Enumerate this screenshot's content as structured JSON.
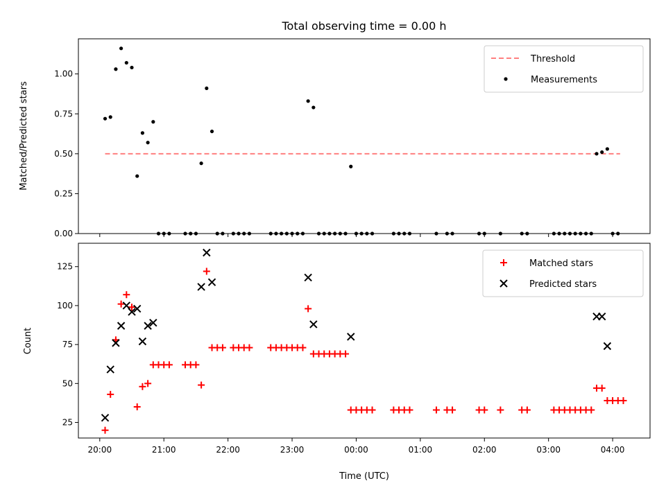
{
  "chart_data": [
    {
      "type": "scatter",
      "title": "Total observing time = 0.00 h",
      "ylabel": "Matched/Predicted stars",
      "xlabel": "",
      "ylim": [
        0,
        1.22
      ],
      "yticks": [
        0.0,
        0.25,
        0.5,
        0.75,
        1.0
      ],
      "ytick_labels": [
        "0.00",
        "0.25",
        "0.50",
        "0.75",
        "1.00"
      ],
      "legend_position": "top-right",
      "threshold": {
        "name": "Threshold",
        "value": 0.5,
        "x_range": [
          "20:05",
          "04:07"
        ],
        "color": "#ff7f7f"
      },
      "series": [
        {
          "name": "Measurements",
          "color": "#000000",
          "marker": "dot",
          "points": [
            [
              "20:05",
              0.72
            ],
            [
              "20:10",
              0.73
            ],
            [
              "20:15",
              1.03
            ],
            [
              "20:20",
              1.16
            ],
            [
              "20:25",
              1.07
            ],
            [
              "20:30",
              1.04
            ],
            [
              "20:35",
              0.36
            ],
            [
              "20:40",
              0.63
            ],
            [
              "20:45",
              0.57
            ],
            [
              "20:50",
              0.7
            ],
            [
              "20:55",
              0.0
            ],
            [
              "21:00",
              0.0
            ],
            [
              "21:05",
              0.0
            ],
            [
              "21:20",
              0.0
            ],
            [
              "21:25",
              0.0
            ],
            [
              "21:30",
              0.0
            ],
            [
              "21:35",
              0.44
            ],
            [
              "21:40",
              0.91
            ],
            [
              "21:45",
              0.64
            ],
            [
              "21:50",
              0.0
            ],
            [
              "21:55",
              0.0
            ],
            [
              "22:05",
              0.0
            ],
            [
              "22:10",
              0.0
            ],
            [
              "22:15",
              0.0
            ],
            [
              "22:20",
              0.0
            ],
            [
              "22:40",
              0.0
            ],
            [
              "22:45",
              0.0
            ],
            [
              "22:50",
              0.0
            ],
            [
              "22:55",
              0.0
            ],
            [
              "23:00",
              0.0
            ],
            [
              "23:05",
              0.0
            ],
            [
              "23:10",
              0.0
            ],
            [
              "23:15",
              0.83
            ],
            [
              "23:20",
              0.79
            ],
            [
              "23:25",
              0.0
            ],
            [
              "23:30",
              0.0
            ],
            [
              "23:35",
              0.0
            ],
            [
              "23:40",
              0.0
            ],
            [
              "23:45",
              0.0
            ],
            [
              "23:50",
              0.0
            ],
            [
              "23:55",
              0.42
            ],
            [
              "00:00",
              0.0
            ],
            [
              "00:05",
              0.0
            ],
            [
              "00:10",
              0.0
            ],
            [
              "00:15",
              0.0
            ],
            [
              "00:35",
              0.0
            ],
            [
              "00:40",
              0.0
            ],
            [
              "00:45",
              0.0
            ],
            [
              "00:50",
              0.0
            ],
            [
              "01:15",
              0.0
            ],
            [
              "01:25",
              0.0
            ],
            [
              "01:30",
              0.0
            ],
            [
              "01:55",
              0.0
            ],
            [
              "02:00",
              0.0
            ],
            [
              "02:15",
              0.0
            ],
            [
              "02:35",
              0.0
            ],
            [
              "02:40",
              0.0
            ],
            [
              "03:05",
              0.0
            ],
            [
              "03:10",
              0.0
            ],
            [
              "03:15",
              0.0
            ],
            [
              "03:20",
              0.0
            ],
            [
              "03:25",
              0.0
            ],
            [
              "03:30",
              0.0
            ],
            [
              "03:35",
              0.0
            ],
            [
              "03:40",
              0.0
            ],
            [
              "03:45",
              0.5
            ],
            [
              "03:50",
              0.51
            ],
            [
              "03:55",
              0.53
            ],
            [
              "04:00",
              0.0
            ],
            [
              "04:05",
              0.0
            ]
          ]
        }
      ]
    },
    {
      "type": "scatter",
      "title": "",
      "xlabel": "Time (UTC)",
      "ylabel": "Count",
      "ylim": [
        15,
        140
      ],
      "yticks": [
        25,
        50,
        75,
        100,
        125
      ],
      "ytick_labels": [
        "25",
        "50",
        "75",
        "100",
        "125"
      ],
      "x_range": [
        "19:40",
        "04:35"
      ],
      "xticks": [
        "20:00",
        "21:00",
        "22:00",
        "23:00",
        "00:00",
        "01:00",
        "02:00",
        "03:00",
        "04:00"
      ],
      "xtick_labels": [
        "20:00",
        "21:00",
        "22:00",
        "23:00",
        "00:00",
        "01:00",
        "02:00",
        "03:00",
        "04:00"
      ],
      "legend_position": "top-right",
      "series": [
        {
          "name": "Matched stars",
          "color": "#ff0000",
          "marker": "plus",
          "points": [
            [
              "20:05",
              20
            ],
            [
              "20:10",
              43
            ],
            [
              "20:15",
              78
            ],
            [
              "20:20",
              101
            ],
            [
              "20:25",
              107
            ],
            [
              "20:30",
              99
            ],
            [
              "20:35",
              35
            ],
            [
              "20:40",
              48
            ],
            [
              "20:45",
              50
            ],
            [
              "20:50",
              62
            ],
            [
              "20:55",
              62
            ],
            [
              "21:00",
              62
            ],
            [
              "21:05",
              62
            ],
            [
              "21:20",
              62
            ],
            [
              "21:25",
              62
            ],
            [
              "21:30",
              62
            ],
            [
              "21:35",
              49
            ],
            [
              "21:40",
              122
            ],
            [
              "21:45",
              73
            ],
            [
              "21:50",
              73
            ],
            [
              "21:55",
              73
            ],
            [
              "22:05",
              73
            ],
            [
              "22:10",
              73
            ],
            [
              "22:15",
              73
            ],
            [
              "22:20",
              73
            ],
            [
              "22:40",
              73
            ],
            [
              "22:45",
              73
            ],
            [
              "22:50",
              73
            ],
            [
              "22:55",
              73
            ],
            [
              "23:00",
              73
            ],
            [
              "23:05",
              73
            ],
            [
              "23:10",
              73
            ],
            [
              "23:15",
              98
            ],
            [
              "23:20",
              69
            ],
            [
              "23:25",
              69
            ],
            [
              "23:30",
              69
            ],
            [
              "23:35",
              69
            ],
            [
              "23:40",
              69
            ],
            [
              "23:45",
              69
            ],
            [
              "23:50",
              69
            ],
            [
              "23:55",
              33
            ],
            [
              "00:00",
              33
            ],
            [
              "00:05",
              33
            ],
            [
              "00:10",
              33
            ],
            [
              "00:15",
              33
            ],
            [
              "00:35",
              33
            ],
            [
              "00:40",
              33
            ],
            [
              "00:45",
              33
            ],
            [
              "00:50",
              33
            ],
            [
              "01:15",
              33
            ],
            [
              "01:25",
              33
            ],
            [
              "01:30",
              33
            ],
            [
              "01:55",
              33
            ],
            [
              "02:00",
              33
            ],
            [
              "02:15",
              33
            ],
            [
              "02:35",
              33
            ],
            [
              "02:40",
              33
            ],
            [
              "03:05",
              33
            ],
            [
              "03:10",
              33
            ],
            [
              "03:15",
              33
            ],
            [
              "03:20",
              33
            ],
            [
              "03:25",
              33
            ],
            [
              "03:30",
              33
            ],
            [
              "03:35",
              33
            ],
            [
              "03:40",
              33
            ],
            [
              "03:45",
              47
            ],
            [
              "03:50",
              47
            ],
            [
              "03:55",
              39
            ],
            [
              "04:00",
              39
            ],
            [
              "04:05",
              39
            ],
            [
              "04:10",
              39
            ]
          ]
        },
        {
          "name": "Predicted stars",
          "color": "#000000",
          "marker": "x",
          "points": [
            [
              "20:05",
              28
            ],
            [
              "20:10",
              59
            ],
            [
              "20:15",
              76
            ],
            [
              "20:20",
              87
            ],
            [
              "20:25",
              100
            ],
            [
              "20:30",
              96
            ],
            [
              "20:35",
              98
            ],
            [
              "20:40",
              77
            ],
            [
              "20:45",
              87
            ],
            [
              "20:50",
              89
            ],
            [
              "21:35",
              112
            ],
            [
              "21:40",
              134
            ],
            [
              "21:45",
              115
            ],
            [
              "23:15",
              118
            ],
            [
              "23:20",
              88
            ],
            [
              "23:55",
              80
            ],
            [
              "03:45",
              93
            ],
            [
              "03:50",
              93
            ],
            [
              "03:55",
              74
            ]
          ]
        }
      ]
    }
  ]
}
